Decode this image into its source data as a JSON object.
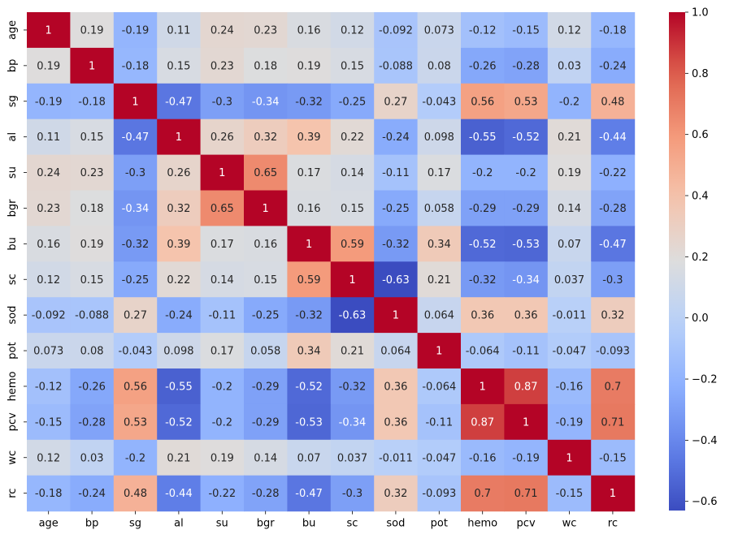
{
  "chart_data": {
    "type": "heatmap",
    "title": "",
    "xlabel": "",
    "ylabel": "",
    "labels": [
      "age",
      "bp",
      "sg",
      "al",
      "su",
      "bgr",
      "bu",
      "sc",
      "sod",
      "pot",
      "hemo",
      "pcv",
      "wc",
      "rc"
    ],
    "matrix": [
      [
        "1",
        "0.19",
        "-0.19",
        "0.11",
        "0.24",
        "0.23",
        "0.16",
        "0.12",
        "-0.092",
        "0.073",
        "-0.12",
        "-0.15",
        "0.12",
        "-0.18"
      ],
      [
        "0.19",
        "1",
        "-0.18",
        "0.15",
        "0.23",
        "0.18",
        "0.19",
        "0.15",
        "-0.088",
        "0.08",
        "-0.26",
        "-0.28",
        "0.03",
        "-0.24"
      ],
      [
        "-0.19",
        "-0.18",
        "1",
        "-0.47",
        "-0.3",
        "-0.34",
        "-0.32",
        "-0.25",
        "0.27",
        "-0.043",
        "0.56",
        "0.53",
        "-0.2",
        "0.48"
      ],
      [
        "0.11",
        "0.15",
        "-0.47",
        "1",
        "0.26",
        "0.32",
        "0.39",
        "0.22",
        "-0.24",
        "0.098",
        "-0.55",
        "-0.52",
        "0.21",
        "-0.44"
      ],
      [
        "0.24",
        "0.23",
        "-0.3",
        "0.26",
        "1",
        "0.65",
        "0.17",
        "0.14",
        "-0.11",
        "0.17",
        "-0.2",
        "-0.2",
        "0.19",
        "-0.22"
      ],
      [
        "0.23",
        "0.18",
        "-0.34",
        "0.32",
        "0.65",
        "1",
        "0.16",
        "0.15",
        "-0.25",
        "0.058",
        "-0.29",
        "-0.29",
        "0.14",
        "-0.28"
      ],
      [
        "0.16",
        "0.19",
        "-0.32",
        "0.39",
        "0.17",
        "0.16",
        "1",
        "0.59",
        "-0.32",
        "0.34",
        "-0.52",
        "-0.53",
        "0.07",
        "-0.47"
      ],
      [
        "0.12",
        "0.15",
        "-0.25",
        "0.22",
        "0.14",
        "0.15",
        "0.59",
        "1",
        "-0.63",
        "0.21",
        "-0.32",
        "-0.34",
        "0.037",
        "-0.3"
      ],
      [
        "-0.092",
        "-0.088",
        "0.27",
        "-0.24",
        "-0.11",
        "-0.25",
        "-0.32",
        "-0.63",
        "1",
        "0.064",
        "0.36",
        "0.36",
        "-0.011",
        "0.32"
      ],
      [
        "0.073",
        "0.08",
        "-0.043",
        "0.098",
        "0.17",
        "0.058",
        "0.34",
        "0.21",
        "0.064",
        "1",
        "-0.064",
        "-0.11",
        "-0.047",
        "-0.093"
      ],
      [
        "-0.12",
        "-0.26",
        "0.56",
        "-0.55",
        "-0.2",
        "-0.29",
        "-0.52",
        "-0.32",
        "0.36",
        "-0.064",
        "1",
        "0.87",
        "-0.16",
        "0.7"
      ],
      [
        "-0.15",
        "-0.28",
        "0.53",
        "-0.52",
        "-0.2",
        "-0.29",
        "-0.53",
        "-0.34",
        "0.36",
        "-0.11",
        "0.87",
        "1",
        "-0.19",
        "0.71"
      ],
      [
        "0.12",
        "0.03",
        "-0.2",
        "0.21",
        "0.19",
        "0.14",
        "0.07",
        "0.037",
        "-0.011",
        "-0.047",
        "-0.16",
        "-0.19",
        "1",
        "-0.15"
      ],
      [
        "-0.18",
        "-0.24",
        "0.48",
        "-0.44",
        "-0.22",
        "-0.28",
        "-0.47",
        "-0.3",
        "0.32",
        "-0.093",
        "0.7",
        "0.71",
        "-0.15",
        "1"
      ]
    ],
    "colorbar": {
      "vmin": -0.63,
      "vmax": 1,
      "ticks": [
        -0.6,
        -0.4,
        -0.2,
        0.0,
        0.2,
        0.4,
        0.6,
        0.8,
        1.0
      ],
      "tick_labels": [
        "−0.6",
        "−0.4",
        "−0.2",
        "0.0",
        "0.2",
        "0.4",
        "0.6",
        "0.8",
        "1.0"
      ],
      "colormap": "coolwarm"
    },
    "grid": false,
    "legend": "colorbar-right"
  }
}
